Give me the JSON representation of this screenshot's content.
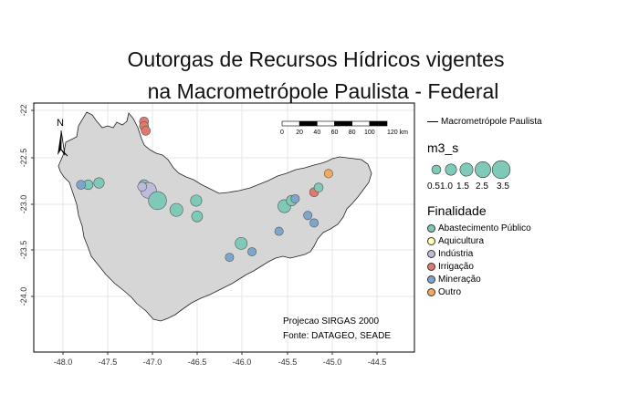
{
  "title": [
    "Outorgas de Recursos Hídricos vigentes",
    "na Macrometrópole Paulista - Federal"
  ],
  "map": {
    "x_ticks": [
      "-48.0",
      "-47.5",
      "-47.0",
      "-46.5",
      "-46.0",
      "-45.5",
      "-45.0",
      "-44.5"
    ],
    "y_ticks": [
      "-22",
      "-22.5",
      "-23.0",
      "-23.5",
      "-24.0"
    ],
    "north_label": "N",
    "scale_bar_labels": [
      "0",
      "20",
      "40",
      "60",
      "80",
      "100",
      "120 km"
    ],
    "projection_note": "Projecao SIRGAS 2000",
    "source_note": "Fonte: DATAGEO, SEADE"
  },
  "legend": {
    "boundary_label": "Macrometrópole Paulista",
    "size_title": "m3_s",
    "size_labels": [
      "0.5",
      "1.0",
      "1.5",
      "2.5",
      "3.5"
    ],
    "category_title": "Finalidade",
    "categories": [
      {
        "label": "Abastecimento Público",
        "color": "#7fc9b8"
      },
      {
        "label": "Aquicultura",
        "color": "#ffffb3"
      },
      {
        "label": "Indústria",
        "color": "#bebada"
      },
      {
        "label": "Irrigação",
        "color": "#e0796f"
      },
      {
        "label": "Mineração",
        "color": "#7ea6cc"
      },
      {
        "label": "Outro",
        "color": "#f5a95b"
      }
    ]
  },
  "colors": {
    "region_fill": "#d6d6d6",
    "grid": "#e6e6e6",
    "frame": "#000000"
  },
  "points": [
    {
      "lon": -47.1,
      "lat": -22.12,
      "category": "Irrigação",
      "size": 0.5
    },
    {
      "lon": -47.1,
      "lat": -22.17,
      "category": "Irrigação",
      "size": 0.5
    },
    {
      "lon": -47.08,
      "lat": -22.22,
      "category": "Irrigação",
      "size": 0.5
    },
    {
      "lon": -47.6,
      "lat": -22.78,
      "category": "Abastecimento Público",
      "size": 0.8
    },
    {
      "lon": -47.72,
      "lat": -22.8,
      "category": "Abastecimento Público",
      "size": 0.6
    },
    {
      "lon": -47.8,
      "lat": -22.8,
      "category": "Mineração",
      "size": 0.5
    },
    {
      "lon": -47.1,
      "lat": -22.8,
      "category": "Abastecimento Público",
      "size": 0.7
    },
    {
      "lon": -47.05,
      "lat": -22.86,
      "category": "Indústria",
      "size": 2.5
    },
    {
      "lon": -47.12,
      "lat": -22.82,
      "category": "Indústria",
      "size": 0.5
    },
    {
      "lon": -46.95,
      "lat": -22.97,
      "category": "Abastecimento Público",
      "size": 3.5
    },
    {
      "lon": -46.74,
      "lat": -23.07,
      "category": "Abastecimento Público",
      "size": 1.5
    },
    {
      "lon": -46.52,
      "lat": -22.97,
      "category": "Abastecimento Público",
      "size": 1.0
    },
    {
      "lon": -46.51,
      "lat": -23.14,
      "category": "Abastecimento Público",
      "size": 0.9
    },
    {
      "lon": -46.02,
      "lat": -23.43,
      "category": "Abastecimento Público",
      "size": 1.2
    },
    {
      "lon": -45.54,
      "lat": -23.03,
      "category": "Abastecimento Público",
      "size": 1.5
    },
    {
      "lon": -45.46,
      "lat": -22.97,
      "category": "Abastecimento Público",
      "size": 0.8
    },
    {
      "lon": -45.21,
      "lat": -22.88,
      "category": "Irrigação",
      "size": 0.5
    },
    {
      "lon": -45.16,
      "lat": -22.83,
      "category": "Abastecimento Público",
      "size": 0.5
    },
    {
      "lon": -45.21,
      "lat": -23.21,
      "category": "Mineração",
      "size": 0.4
    },
    {
      "lon": -45.6,
      "lat": -23.3,
      "category": "Mineração",
      "size": 0.4
    },
    {
      "lon": -45.28,
      "lat": -23.13,
      "category": "Mineração",
      "size": 0.4
    },
    {
      "lon": -45.05,
      "lat": -22.68,
      "category": "Outro",
      "size": 0.4
    },
    {
      "lon": -45.42,
      "lat": -22.95,
      "category": "Mineração",
      "size": 0.4
    },
    {
      "lon": -46.15,
      "lat": -23.58,
      "category": "Mineração",
      "size": 0.4
    },
    {
      "lon": -45.9,
      "lat": -23.52,
      "category": "Mineração",
      "size": 0.4
    }
  ]
}
